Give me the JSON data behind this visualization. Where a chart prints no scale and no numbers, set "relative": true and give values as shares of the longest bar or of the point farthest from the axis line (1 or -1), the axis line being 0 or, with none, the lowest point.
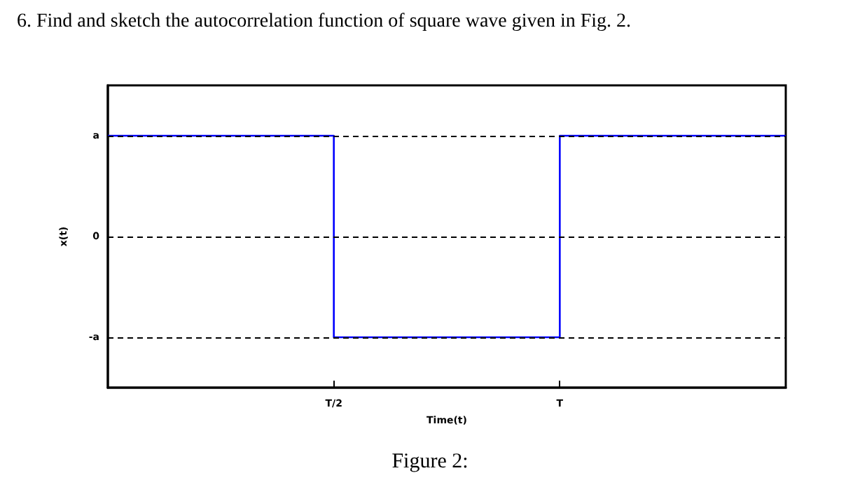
{
  "chart_data": {
    "type": "step",
    "title": "6. Find and sketch the autocorrelation function of square wave given in Fig. 2.",
    "xlabel": "Time(t)",
    "ylabel": "x(t)",
    "annotations": [
      "Figure 2:"
    ],
    "categories": [
      null,
      "T/2",
      "T",
      null
    ],
    "series": [
      {
        "color": "#0000ff",
        "values": [
          1,
          -1,
          1,
          1
        ]
      }
    ],
    "relative": true,
    "ref_lines": [
      {
        "axis": "y",
        "value": 1,
        "label": "a",
        "color": "#000000",
        "line_style": "dashed"
      },
      {
        "axis": "y",
        "value": 0,
        "label": "0",
        "color": "#000000",
        "line_style": "dashed"
      },
      {
        "axis": "y",
        "value": -1,
        "label": "-a",
        "color": "#000000",
        "line_style": "dashed"
      }
    ],
    "line_style": "solid"
  }
}
